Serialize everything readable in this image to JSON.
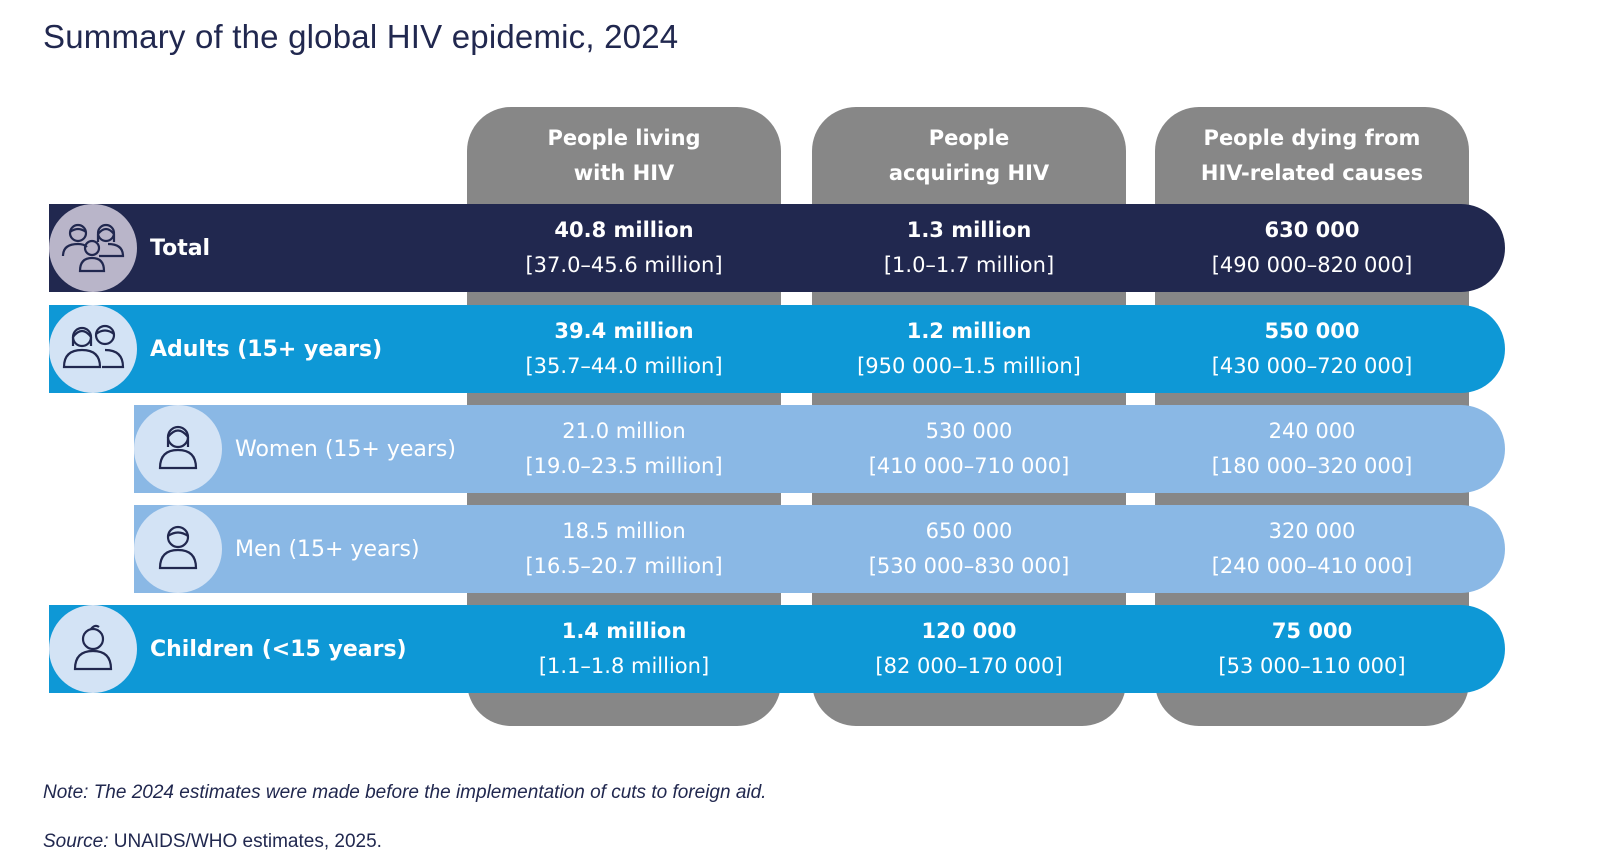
{
  "title": "Summary of the global HIV epidemic, 2024",
  "columns": [
    {
      "label": "People living\nwith HIV"
    },
    {
      "label": "People\nacquiring HIV"
    },
    {
      "label": "People dying from\nHIV-related causes"
    }
  ],
  "rows": [
    {
      "label": "Total",
      "icon": "family-icon",
      "values": [
        {
          "value": "40.8 million",
          "range": "[37.0–45.6 million]"
        },
        {
          "value": "1.3 million",
          "range": "[1.0–1.7 million]"
        },
        {
          "value": "630 000",
          "range": "[490 000–820 000]"
        }
      ]
    },
    {
      "label": "Adults (15+ years)",
      "icon": "adults-icon",
      "values": [
        {
          "value": "39.4 million",
          "range": "[35.7–44.0 million]"
        },
        {
          "value": "1.2 million",
          "range": "[950 000–1.5 million]"
        },
        {
          "value": "550 000",
          "range": "[430 000–720 000]"
        }
      ]
    },
    {
      "label": "Women (15+ years)",
      "icon": "woman-icon",
      "values": [
        {
          "value": "21.0 million",
          "range": "[19.0–23.5 million]"
        },
        {
          "value": "530 000",
          "range": "[410 000–710 000]"
        },
        {
          "value": "240 000",
          "range": "[180 000–320 000]"
        }
      ]
    },
    {
      "label": "Men (15+ years)",
      "icon": "man-icon",
      "values": [
        {
          "value": "18.5 million",
          "range": "[16.5–20.7 million]"
        },
        {
          "value": "650 000",
          "range": "[530 000–830 000]"
        },
        {
          "value": "320 000",
          "range": "[240 000–410 000]"
        }
      ]
    },
    {
      "label": "Children (<15 years)",
      "icon": "child-icon",
      "values": [
        {
          "value": "1.4 million",
          "range": "[1.1–1.8 million]"
        },
        {
          "value": "120 000",
          "range": "[82 000–170 000]"
        },
        {
          "value": "75 000",
          "range": "[53 000–110 000]"
        }
      ]
    }
  ],
  "note": "Note: The 2024 estimates were made before the implementation of cuts to foreign aid.",
  "source_label": "Source:",
  "source_text": " UNAIDS/WHO estimates, 2025.",
  "colors": {
    "total": "#21284f",
    "adults_children": "#0e98d6",
    "women_men": "#8ab8e5",
    "column": "#878787"
  }
}
